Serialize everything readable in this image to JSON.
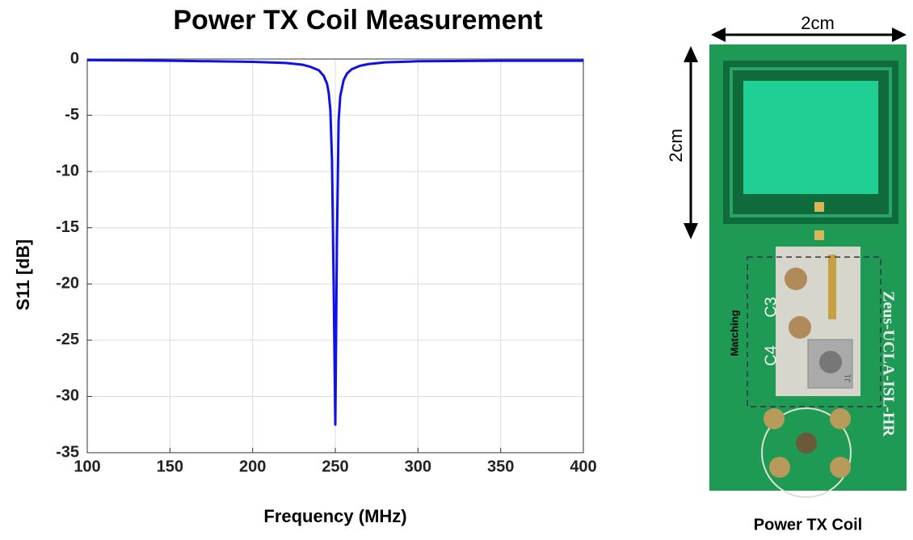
{
  "chart_data": {
    "type": "line",
    "title": "Power TX Coil Measurement",
    "x_label": "Frequency (MHz)",
    "y_label": "S11 [dB]",
    "xlim": [
      100,
      400
    ],
    "xticks": [
      100,
      150,
      200,
      250,
      300,
      350,
      400
    ],
    "ylim": [
      -35,
      0
    ],
    "yticks": [
      0,
      -5,
      -10,
      -15,
      -20,
      -25,
      -30,
      -35
    ],
    "grid": true,
    "series": [
      {
        "color": "#1010e8",
        "x": [
          100,
          150,
          200,
          220,
          230,
          235,
          240,
          243,
          245,
          246,
          247,
          248,
          249,
          250,
          251,
          252,
          253,
          255,
          257,
          260,
          265,
          270,
          280,
          300,
          350,
          400
        ],
        "values": [
          -0.1,
          -0.15,
          -0.25,
          -0.35,
          -0.5,
          -0.7,
          -1.0,
          -1.5,
          -2.2,
          -3.0,
          -4.5,
          -9,
          -20,
          -32.5,
          -16,
          -5.5,
          -3.3,
          -1.9,
          -1.3,
          -0.9,
          -0.6,
          -0.45,
          -0.3,
          -0.2,
          -0.15,
          -0.15
        ]
      }
    ]
  },
  "photo": {
    "width_label": "2cm",
    "height_label": "2cm",
    "matching_label": "Matching",
    "board_labels": [
      "C3",
      "C4",
      "J1",
      "Zeus-UCLA-ISL-HR"
    ],
    "caption": "Power TX Coil"
  }
}
